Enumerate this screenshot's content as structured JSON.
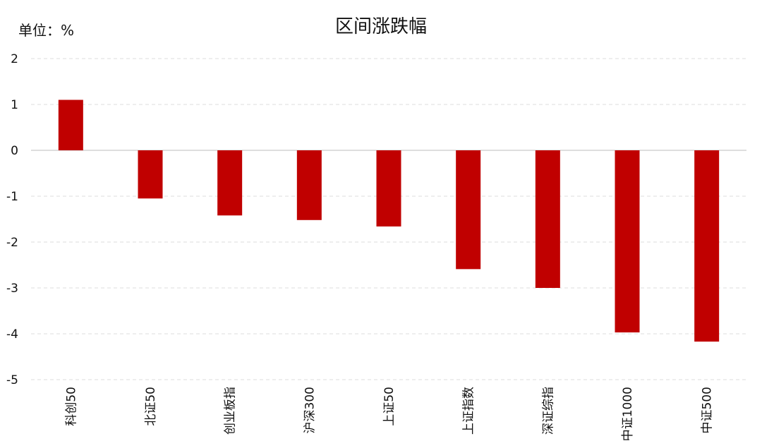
{
  "chart_data": {
    "type": "bar",
    "title": "区间涨跌幅",
    "unit_label": "单位：%",
    "ylim": [
      -5,
      2
    ],
    "yticks": [
      2,
      1,
      0,
      -1,
      -2,
      -3,
      -4,
      -5
    ],
    "grid": true,
    "bar_color": "#c00000",
    "categories": [
      "科创50",
      "北证50",
      "创业板指",
      "沪深300",
      "上证50",
      "上证指数",
      "深证综指",
      "中证1000",
      "中证500"
    ],
    "values": [
      1.1,
      -1.05,
      -1.42,
      -1.52,
      -1.66,
      -2.59,
      -3.0,
      -3.97,
      -4.17
    ]
  }
}
